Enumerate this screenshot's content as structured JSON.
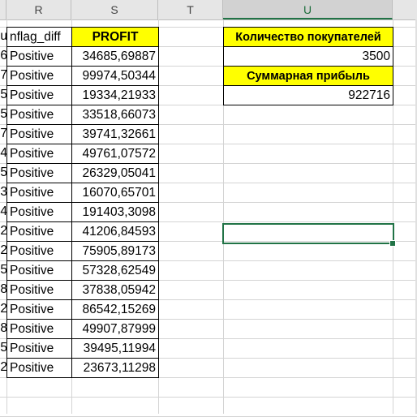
{
  "columns": {
    "R": "R",
    "S": "S",
    "T": "T",
    "U": "U"
  },
  "header_row": {
    "col_q_fragment": "u",
    "col_r": "nflag_diff",
    "col_s": "PROFIT"
  },
  "summary": {
    "customers_label": "Количество покупателей",
    "customers_value": "3500",
    "profit_label": "Суммарная прибыль",
    "profit_value": "922716"
  },
  "rows": [
    {
      "q": "6",
      "flag": "Positive",
      "profit": "34685,69887"
    },
    {
      "q": "7",
      "flag": "Positive",
      "profit": "99974,50344"
    },
    {
      "q": "5",
      "flag": "Positive",
      "profit": "19334,21933"
    },
    {
      "q": "5",
      "flag": "Positive",
      "profit": "33518,66073"
    },
    {
      "q": "7",
      "flag": "Positive",
      "profit": "39741,32661"
    },
    {
      "q": "4",
      "flag": "Positive",
      "profit": "49761,07572"
    },
    {
      "q": "5",
      "flag": "Positive",
      "profit": "26329,05041"
    },
    {
      "q": "3",
      "flag": "Positive",
      "profit": "16070,65701"
    },
    {
      "q": "4",
      "flag": "Positive",
      "profit": "191403,3098"
    },
    {
      "q": "2",
      "flag": "Positive",
      "profit": "41206,84593"
    },
    {
      "q": "2",
      "flag": "Positive",
      "profit": "75905,89173"
    },
    {
      "q": "5",
      "flag": "Positive",
      "profit": "57328,62549"
    },
    {
      "q": "8",
      "flag": "Positive",
      "profit": "37838,05942"
    },
    {
      "q": "2",
      "flag": "Positive",
      "profit": "86542,15269"
    },
    {
      "q": "8",
      "flag": "Positive",
      "profit": "49907,87999"
    },
    {
      "q": "5",
      "flag": "Positive",
      "profit": "39495,11994"
    },
    {
      "q": "2",
      "flag": "Positive",
      "profit": "23673,11298"
    }
  ],
  "colors": {
    "header_fill": "#ffff00",
    "selection": "#217346"
  }
}
